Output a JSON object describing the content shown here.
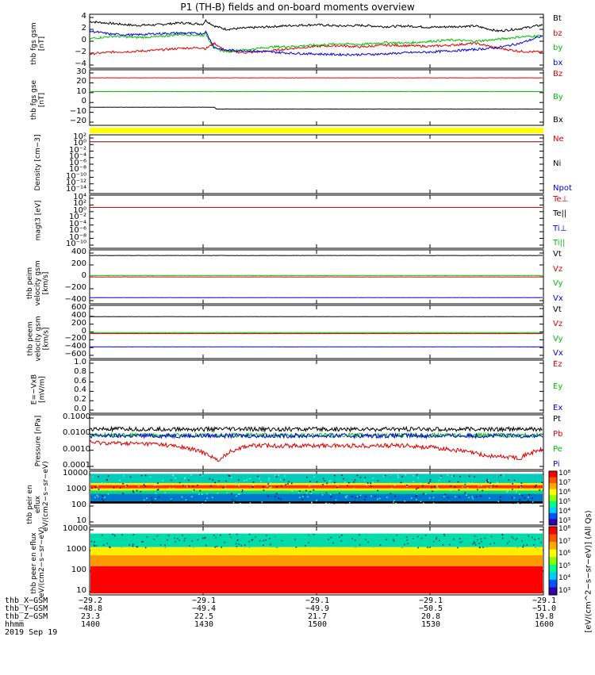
{
  "title": "P1 (TH-B) fields and on-board moments overview",
  "date": "2019 Sep 19",
  "colors": {
    "black": "#000000",
    "red": "#dd0000",
    "green": "#00c000",
    "blue": "#0000dd",
    "darkred": "#7a0000",
    "yellow": "#ffff00"
  },
  "chart_data": [
    {
      "type": "line",
      "panel": "fgs_gsm",
      "ylabel": "thb fgs gsm [nT]",
      "ylim": [
        -4,
        4
      ],
      "yticks": [
        "4",
        "2",
        "0",
        "−2",
        "−4"
      ],
      "series": [
        {
          "name": "Bt",
          "color": "#000000",
          "x": [
            1400,
            1410,
            1420,
            1430,
            1440,
            1450,
            1451,
            1455,
            1460,
            1470,
            1480,
            1490,
            1500,
            1510,
            1520,
            1530,
            1540,
            1550,
            1560,
            1570,
            1580,
            1590,
            1600
          ],
          "values": [
            3.1,
            2.8,
            2.5,
            2.6,
            2.9,
            2.7,
            3.3,
            2.4,
            1.9,
            2.1,
            2.3,
            2.5,
            2.6,
            2.4,
            2.5,
            2.3,
            2.4,
            2.2,
            2.3,
            2.4,
            1.6,
            2.0,
            2.6
          ]
        },
        {
          "name": "bz",
          "color": "#dd0000",
          "x": [
            1400,
            1410,
            1420,
            1430,
            1440,
            1450,
            1451,
            1455,
            1460,
            1470,
            1480,
            1490,
            1500,
            1510,
            1520,
            1530,
            1540,
            1550,
            1560,
            1570,
            1580,
            1590,
            1600
          ],
          "values": [
            -2.0,
            -1.7,
            -1.6,
            -1.4,
            -1.1,
            -1.0,
            -1.2,
            -0.3,
            -1.6,
            -1.8,
            -1.5,
            -1.1,
            -0.8,
            -0.7,
            -0.9,
            -0.6,
            -0.7,
            -0.8,
            -0.6,
            -0.3,
            -1.1,
            -1.6,
            -1.7
          ]
        },
        {
          "name": "by",
          "color": "#00c000",
          "x": [
            1400,
            1410,
            1420,
            1430,
            1440,
            1450,
            1451,
            1455,
            1460,
            1470,
            1480,
            1490,
            1500,
            1510,
            1520,
            1530,
            1540,
            1550,
            1560,
            1570,
            1580,
            1590,
            1600
          ],
          "values": [
            0.4,
            0.8,
            0.6,
            0.7,
            1.1,
            0.9,
            1.3,
            -1.2,
            -1.6,
            -1.3,
            -0.9,
            -0.8,
            -0.6,
            -0.4,
            -0.5,
            -0.2,
            -0.3,
            0.0,
            0.2,
            0.0,
            0.3,
            0.7,
            0.9
          ]
        },
        {
          "name": "bx",
          "color": "#0000dd",
          "x": [
            1400,
            1410,
            1420,
            1430,
            1440,
            1450,
            1451,
            1455,
            1460,
            1470,
            1480,
            1490,
            1500,
            1510,
            1520,
            1530,
            1540,
            1550,
            1560,
            1570,
            1580,
            1590,
            1600
          ],
          "values": [
            1.6,
            1.1,
            1.0,
            1.2,
            1.3,
            1.2,
            1.6,
            -1.0,
            -1.4,
            -1.5,
            -1.7,
            -1.9,
            -2.0,
            -2.1,
            -2.1,
            -2.0,
            -1.8,
            -1.7,
            -1.5,
            -1.3,
            -1.0,
            -0.3,
            0.9
          ]
        }
      ],
      "legend": [
        "Bt",
        "bz",
        "by",
        "bx"
      ]
    },
    {
      "type": "line",
      "panel": "fgs_gse",
      "ylabel": "thb fgs gse [nT]",
      "ylim": [
        -25,
        32
      ],
      "yticks": [
        "30",
        "20",
        "10",
        "0",
        "−10",
        "−20"
      ],
      "series": [
        {
          "name": "Bz",
          "color": "#dd0000",
          "x": [
            1400,
            1600
          ],
          "values": [
            25,
            25
          ]
        },
        {
          "name": "By",
          "color": "#00c000",
          "x": [
            1400,
            1600
          ],
          "values": [
            10,
            10
          ]
        },
        {
          "name": "Bx",
          "color": "#000000",
          "x": [
            1400,
            1455,
            1456,
            1600
          ],
          "values": [
            -7,
            -7,
            -9,
            -9
          ]
        }
      ],
      "legend": [
        "Bz",
        "By",
        "Bx"
      ]
    },
    {
      "type": "line",
      "panel": "density",
      "ylabel": "Density [cm−3]",
      "scale": "log",
      "yticks": [
        "10²",
        "10⁰",
        "10⁻²",
        "10⁻⁴",
        "10⁻⁶",
        "10⁻⁸",
        "10⁻¹⁰",
        "10⁻¹²",
        "10⁻¹⁴"
      ],
      "series": [
        {
          "name": "Ne",
          "color": "#7a0000",
          "x": [
            1400,
            1600
          ],
          "values": [
            3,
            3
          ]
        }
      ],
      "legend": [
        "Ne",
        "Ni",
        "Npot"
      ]
    },
    {
      "type": "line",
      "panel": "temperature",
      "ylabel": "magt3 [eV]",
      "scale": "log",
      "yticks": [
        "10⁴",
        "10²",
        "10⁰",
        "10⁻²",
        "10⁻⁴",
        "10⁻⁶",
        "10⁻⁸",
        "10⁻¹⁰"
      ],
      "series": [
        {
          "name": "Te⊥",
          "color": "#dd0000",
          "x": [
            1400,
            1600
          ],
          "values": [
            10,
            10
          ]
        }
      ],
      "legend": [
        "Te⊥",
        "Te||",
        "Ti⊥",
        "Ti||"
      ]
    },
    {
      "type": "line",
      "panel": "peim_velocity",
      "ylabel": "thb peim velocity gsm [km/s]",
      "ylim": [
        -470,
        470
      ],
      "yticks": [
        "400",
        "200",
        "0",
        "−200",
        "−400"
      ],
      "series": [
        {
          "name": "Vt",
          "color": "#000000",
          "x": [
            1400,
            1600
          ],
          "values": [
            395,
            395
          ]
        },
        {
          "name": "Vy",
          "color": "#00c000",
          "x": [
            1400,
            1600
          ],
          "values": [
            25,
            25
          ]
        },
        {
          "name": "Vz",
          "color": "#dd0000",
          "x": [
            1400,
            1600
          ],
          "values": [
            -2,
            -2
          ]
        },
        {
          "name": "Vx",
          "color": "#0000dd",
          "x": [
            1400,
            1600
          ],
          "values": [
            -385,
            -385
          ]
        }
      ],
      "legend": [
        "Vt",
        "Vz",
        "Vy",
        "Vx"
      ]
    },
    {
      "type": "line",
      "panel": "peem_velocity",
      "ylabel": "thb peem velocity gsm [km/s]",
      "ylim": [
        -620,
        620
      ],
      "yticks": [
        "600",
        "400",
        "200",
        "0",
        "−200",
        "−400",
        "−600"
      ],
      "series": [
        {
          "name": "Vt",
          "color": "#000000",
          "x": [
            1400,
            1600
          ],
          "values": [
            380,
            380
          ]
        },
        {
          "name": "Vy",
          "color": "#00c000",
          "x": [
            1400,
            1600
          ],
          "values": [
            -15,
            -15
          ]
        },
        {
          "name": "Vz",
          "color": "#dd0000",
          "x": [
            1400,
            1600
          ],
          "values": [
            -40,
            -40
          ]
        },
        {
          "name": "Vx",
          "color": "#0000dd",
          "x": [
            1400,
            1600
          ],
          "values": [
            -370,
            -370
          ]
        }
      ],
      "legend": [
        "Vt",
        "Vz",
        "Vy",
        "Vx"
      ]
    },
    {
      "type": "line",
      "panel": "efield",
      "ylabel": "E=−VxB [mV/m]",
      "ylim": [
        0,
        1
      ],
      "yticks": [
        "1.0",
        "0.8",
        "0.6",
        "0.4",
        "0.2",
        "0.0"
      ],
      "series": [],
      "legend": [
        "Ez",
        "Ey",
        "Ex"
      ]
    },
    {
      "type": "line",
      "panel": "pressure",
      "ylabel": "Pressure [nPa]",
      "scale": "log",
      "ylim": [
        0.0001,
        0.1
      ],
      "yticks": [
        "0.1000",
        "0.0100",
        "0.0010",
        "0.0001"
      ],
      "series": [
        {
          "name": "Pt",
          "color": "#000000",
          "x": [
            1400,
            1600
          ],
          "values": [
            0.018,
            0.018
          ]
        },
        {
          "name": "Pe",
          "color": "#00c000",
          "x": [
            1400,
            1600
          ],
          "values": [
            0.008,
            0.008
          ]
        },
        {
          "name": "Pi",
          "color": "#0000dd",
          "x": [
            1400,
            1600
          ],
          "values": [
            0.0075,
            0.0075
          ]
        },
        {
          "name": "Pb",
          "color": "#dd0000",
          "x": [
            1400,
            1430,
            1457,
            1470,
            1540,
            1575,
            1590,
            1600
          ],
          "values": [
            0.003,
            0.0025,
            0.0002,
            0.002,
            0.002,
            0.0005,
            0.0004,
            0.0012
          ]
        }
      ],
      "legend": [
        "Pt",
        "Pb",
        "Pe",
        "Pi"
      ]
    },
    {
      "type": "heatmap",
      "panel": "peir_eflux",
      "ylabel": "thb peir en eflux eV/(cm2−s−sr−eV)",
      "scale": "log",
      "yticks": [
        "10000",
        "1000",
        "100",
        "10"
      ],
      "colorbar": {
        "ticks": [
          "10⁸",
          "10⁷",
          "10⁶",
          "10⁵",
          "10⁴",
          "10³"
        ],
        "label": "[eV/(cm^2−s−sr−eV)] (All Qs)"
      }
    },
    {
      "type": "heatmap",
      "panel": "peer_eflux",
      "ylabel": "thb peer en eflux eV/(cm2−s−sr−eV)",
      "scale": "log",
      "yticks": [
        "10000",
        "1000",
        "100",
        "10"
      ],
      "colorbar": {
        "ticks": [
          "10⁸",
          "10⁷",
          "10⁶",
          "10⁵",
          "10⁴",
          "10³"
        ],
        "label": "[eV/(cm^2−s−sr−eV)] (All Qs)"
      }
    }
  ],
  "ephemeris": {
    "rows": [
      {
        "label": "thb_X−GSM",
        "values": [
          "−29.2",
          "−29.1",
          "−29.1",
          "−29.1",
          "−29.1"
        ]
      },
      {
        "label": "thb_Y−GSM",
        "values": [
          "−48.8",
          "−49.4",
          "−49.9",
          "−50.5",
          "−51.0"
        ]
      },
      {
        "label": "thb_Z−GSM",
        "values": [
          "23.3",
          "22.5",
          "21.7",
          "20.8",
          "19.8"
        ]
      },
      {
        "label": "hhmm",
        "values": [
          "1400",
          "1430",
          "1500",
          "1530",
          "1600"
        ]
      }
    ]
  },
  "colorbar_label": "[eV/(cm^2−s−sr−eV)] (All Qs)"
}
